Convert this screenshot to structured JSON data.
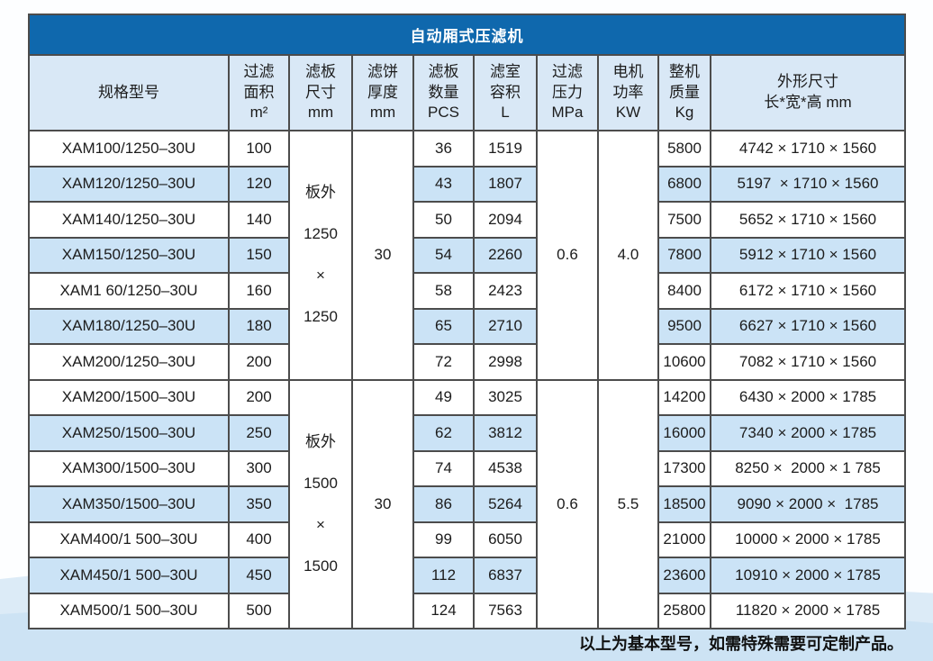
{
  "title": "自动厢式压滤机",
  "footer_note": "以上为基本型号，如需特殊需要可定制产品。",
  "colors": {
    "title_bar": "#0f68ad",
    "title_text": "#ffffff",
    "header_bg": "#d9e8f6",
    "stripe_bg": "#cbe3f6",
    "row_bg": "#ffffff",
    "border": "#4c4c4c",
    "wave_light": "#dcebf7",
    "wave_deep": "#cde3f4"
  },
  "table": {
    "columns": [
      {
        "key": "model",
        "lines": [
          "规格型号"
        ]
      },
      {
        "key": "area",
        "lines": [
          "过滤",
          "面积",
          "m²"
        ]
      },
      {
        "key": "plate-size",
        "lines": [
          "滤板",
          "尺寸",
          "mm"
        ]
      },
      {
        "key": "cake-thickness",
        "lines": [
          "滤饼",
          "厚度",
          "mm"
        ]
      },
      {
        "key": "plates",
        "lines": [
          "滤板",
          "数量",
          "PCS"
        ]
      },
      {
        "key": "volume",
        "lines": [
          "滤室",
          "容积",
          "L"
        ]
      },
      {
        "key": "pressure",
        "lines": [
          "过滤",
          "压力",
          "MPa"
        ]
      },
      {
        "key": "motor-power",
        "lines": [
          "电机",
          "功率",
          "KW"
        ]
      },
      {
        "key": "weight",
        "lines": [
          "整机",
          "质量",
          "Kg"
        ]
      },
      {
        "key": "dimensions",
        "lines": [
          "外形尺寸",
          "长*宽*高 mm"
        ]
      }
    ],
    "groups": [
      {
        "plate_size_lines": [
          "板外",
          "1250",
          "×",
          "1250"
        ],
        "cake_thickness": "30",
        "filter_pressure": "0.6",
        "motor_power": "4.0",
        "rows": [
          {
            "model": "XAM100/1250–30U",
            "area": "100",
            "plates": "36",
            "volume": "1519",
            "weight": "5800",
            "dimensions": "4742 × 1710 × 1560"
          },
          {
            "model": "XAM120/1250–30U",
            "area": "120",
            "plates": "43",
            "volume": "1807",
            "weight": "6800",
            "dimensions": "5197  × 1710 × 1560"
          },
          {
            "model": "XAM140/1250–30U",
            "area": "140",
            "plates": "50",
            "volume": "2094",
            "weight": "7500",
            "dimensions": "5652 × 1710 × 1560"
          },
          {
            "model": "XAM150/1250–30U",
            "area": "150",
            "plates": "54",
            "volume": "2260",
            "weight": "7800",
            "dimensions": "5912 × 1710 × 1560"
          },
          {
            "model": "XAM1 60/1250–30U",
            "area": "160",
            "plates": "58",
            "volume": "2423",
            "weight": "8400",
            "dimensions": "6172 × 1710 × 1560"
          },
          {
            "model": "XAM180/1250–30U",
            "area": "180",
            "plates": "65",
            "volume": "2710",
            "weight": "9500",
            "dimensions": "6627 × 1710 × 1560"
          },
          {
            "model": "XAM200/1250–30U",
            "area": "200",
            "plates": "72",
            "volume": "2998",
            "weight": "10600",
            "dimensions": "7082 × 1710 × 1560"
          }
        ]
      },
      {
        "plate_size_lines": [
          "板外",
          "1500",
          "×",
          "1500"
        ],
        "cake_thickness": "30",
        "filter_pressure": "0.6",
        "motor_power": "5.5",
        "rows": [
          {
            "model": "XAM200/1500–30U",
            "area": "200",
            "plates": "49",
            "volume": "3025",
            "weight": "14200",
            "dimensions": "6430 × 2000 × 1785"
          },
          {
            "model": "XAM250/1500–30U",
            "area": "250",
            "plates": "62",
            "volume": "3812",
            "weight": "16000",
            "dimensions": "7340 × 2000 × 1785"
          },
          {
            "model": "XAM300/1500–30U",
            "area": "300",
            "plates": "74",
            "volume": "4538",
            "weight": "17300",
            "dimensions": "8250 ×  2000 × 1 785"
          },
          {
            "model": "XAM350/1500–30U",
            "area": "350",
            "plates": "86",
            "volume": "5264",
            "weight": "18500",
            "dimensions": "9090 × 2000 ×  1785"
          },
          {
            "model": "XAM400/1 500–30U",
            "area": "400",
            "plates": "99",
            "volume": "6050",
            "weight": "21000",
            "dimensions": "10000 × 2000 × 1785"
          },
          {
            "model": "XAM450/1 500–30U",
            "area": "450",
            "plates": "112",
            "volume": "6837",
            "weight": "23600",
            "dimensions": "10910 × 2000 × 1785"
          },
          {
            "model": "XAM500/1 500–30U",
            "area": "500",
            "plates": "124",
            "volume": "7563",
            "weight": "25800",
            "dimensions": "11820 × 2000 × 1785"
          }
        ]
      }
    ]
  }
}
